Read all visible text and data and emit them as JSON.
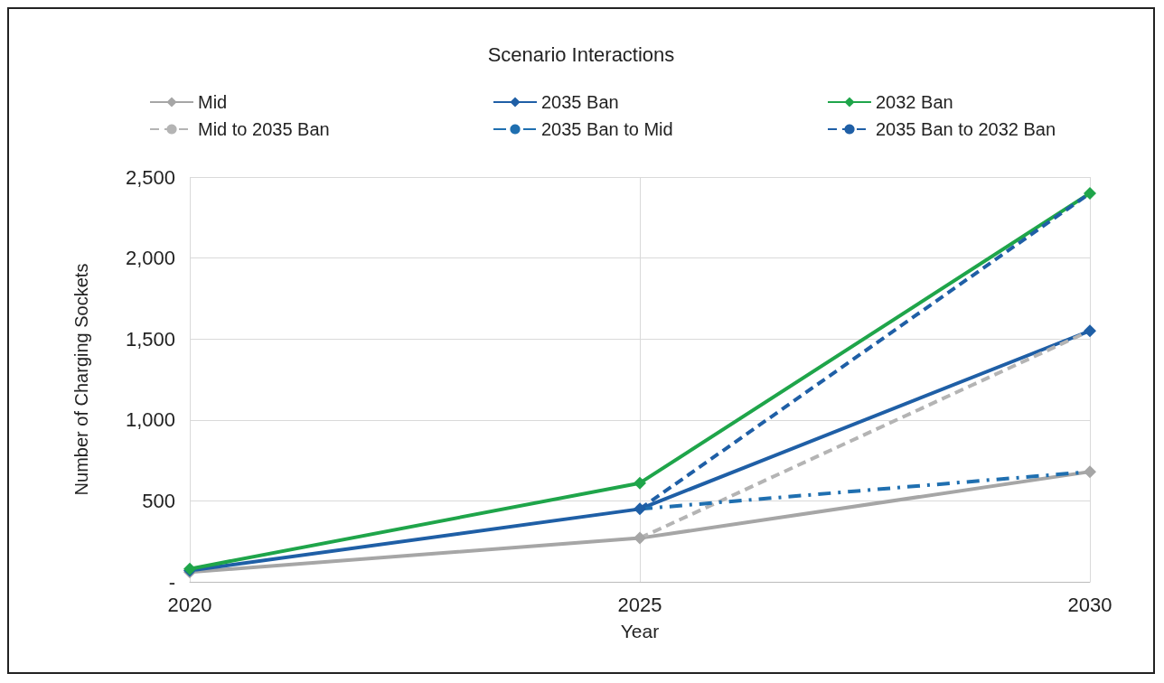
{
  "chart_data": {
    "type": "line",
    "title": "Scenario Interactions",
    "xlabel": "Year",
    "ylabel": "Number of Charging Sockets",
    "categories": [
      "2020",
      "2025",
      "2030"
    ],
    "series": [
      {
        "name": "Mid",
        "color": "#a6a6a6",
        "values": [
          60,
          270,
          680
        ],
        "marker": "diamond",
        "line_style": "solid"
      },
      {
        "name": "2035 Ban",
        "color": "#1f5fa6",
        "values": [
          70,
          450,
          1550
        ],
        "marker": "diamond",
        "line_style": "solid"
      },
      {
        "name": "2032 Ban",
        "color": "#1fa54a",
        "values": [
          80,
          610,
          2400
        ],
        "marker": "diamond",
        "line_style": "solid"
      },
      {
        "name": "Mid to 2035 Ban",
        "color": "#b4b4b4",
        "values": [
          null,
          270,
          1550
        ],
        "marker": "none",
        "line_style": "dashed"
      },
      {
        "name": "2035 Ban to Mid",
        "color": "#1f6fb0",
        "values": [
          null,
          450,
          680
        ],
        "marker": "none",
        "line_style": "dashdot"
      },
      {
        "name": "2035 Ban to 2032 Ban",
        "color": "#1f5fa6",
        "values": [
          null,
          450,
          2400
        ],
        "marker": "none",
        "line_style": "dashed"
      }
    ],
    "ylim": [
      0,
      2500
    ],
    "yticks": [
      {
        "value": 0,
        "label": "-"
      },
      {
        "value": 500,
        "label": "500"
      },
      {
        "value": 1000,
        "label": "1,000"
      },
      {
        "value": 1500,
        "label": "1,500"
      },
      {
        "value": 2000,
        "label": "2,000"
      },
      {
        "value": 2500,
        "label": "2,500"
      }
    ],
    "grid": true,
    "legend": "top"
  }
}
